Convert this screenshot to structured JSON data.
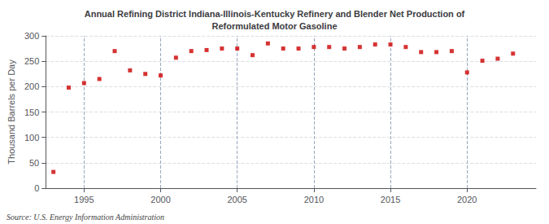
{
  "chart_data": {
    "type": "scatter",
    "title": "Annual Refining District Indiana-Illinois-Kentucky Refinery and Blender Net Production of\nReformulated Motor Gasoline",
    "ylabel": "Thousand Barrels per Day",
    "annotations": [
      "Source: U.S. Energy Information Administration"
    ],
    "x": [
      1993,
      1994,
      1995,
      1996,
      1997,
      1998,
      1999,
      2000,
      2001,
      2002,
      2003,
      2004,
      2005,
      2006,
      2007,
      2008,
      2009,
      2010,
      2011,
      2012,
      2013,
      2014,
      2015,
      2016,
      2017,
      2018,
      2019,
      2020,
      2021,
      2022,
      2023
    ],
    "values": [
      32,
      198,
      207,
      215,
      270,
      232,
      225,
      222,
      257,
      270,
      272,
      275,
      275,
      262,
      285,
      275,
      275,
      278,
      278,
      275,
      278,
      283,
      283,
      278,
      268,
      268,
      270,
      228,
      251,
      255,
      265
    ],
    "color": "#cc0000",
    "marker": "square",
    "xlim": [
      1992.5,
      2024.5
    ],
    "xticks": [
      1995,
      2000,
      2005,
      2010,
      2015,
      2020
    ],
    "ylim": [
      0,
      300
    ],
    "yticks": [
      0,
      50,
      100,
      150,
      200,
      250,
      300
    ],
    "grid": true
  }
}
